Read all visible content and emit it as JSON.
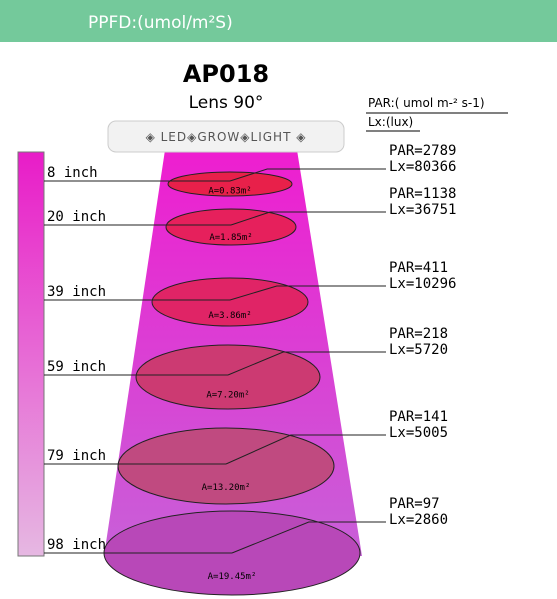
{
  "header": {
    "title": "PPFD:(umol/m²S)"
  },
  "product": {
    "model": "AP018",
    "lens": "Lens 90°",
    "fixture_label": "◈ LED◈GROW◈LIGHT ◈"
  },
  "legend": {
    "par_unit": "PAR:( umol m-² s-1)",
    "lux_unit": "Lx:(lux)"
  },
  "levels": [
    {
      "distance": "8 inch",
      "area": "A=0.83m²",
      "par": "PAR=2789",
      "lux": "Lx=80366"
    },
    {
      "distance": "20 inch",
      "area": "A=1.85m²",
      "par": "PAR=1138",
      "lux": "Lx=36751"
    },
    {
      "distance": "39 inch",
      "area": "A=3.86m²",
      "par": "PAR=411",
      "lux": "Lx=10296"
    },
    {
      "distance": "59 inch",
      "area": "A=7.20m²",
      "par": "PAR=218",
      "lux": "Lx=5720"
    },
    {
      "distance": "79 inch",
      "area": "A=13.20m²",
      "par": "PAR=141",
      "lux": "Lx=5005"
    },
    {
      "distance": "98 inch",
      "area": "A=19.45m²",
      "par": "PAR=97",
      "lux": "Lx=2860"
    }
  ]
}
